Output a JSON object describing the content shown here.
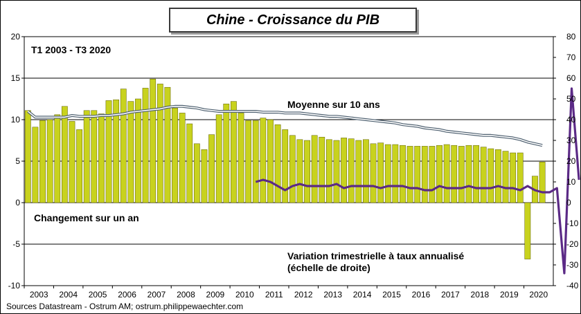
{
  "title": "Chine - Croissance du PIB",
  "source": "Sources Datastream - Ostrum AM; ostrum.philippewaechter.com",
  "chart_data": {
    "type": "bar",
    "period_label": "T1 2003 - T3 2020",
    "years": [
      "2003",
      "2004",
      "2005",
      "2006",
      "2007",
      "2008",
      "2009",
      "2010",
      "2011",
      "2012",
      "2013",
      "2014",
      "2015",
      "2016",
      "2017",
      "2018",
      "2019",
      "2020"
    ],
    "left_axis": {
      "ylim": [
        -10,
        20
      ],
      "ticks": [
        -10,
        -5,
        0,
        5,
        10,
        15,
        20
      ]
    },
    "right_axis": {
      "ylim": [
        -40,
        80
      ],
      "ticks": [
        -40,
        -30,
        -20,
        -10,
        0,
        10,
        20,
        30,
        40,
        50,
        60,
        70,
        80
      ]
    },
    "colors": {
      "bars": "#c8d21e",
      "bar_edge": "#5a5a00",
      "quarterly": "#5b2a86",
      "ten_year_outer": "#4e6070",
      "ten_year_inner": "#ffffff"
    },
    "series": [
      {
        "name": "Changement sur un an",
        "axis": "left",
        "kind": "bar",
        "start": "2003-Q1",
        "values": [
          11.1,
          9.1,
          9.9,
          10.0,
          10.6,
          11.6,
          9.8,
          8.8,
          11.1,
          11.1,
          10.7,
          12.3,
          12.4,
          13.7,
          12.2,
          12.5,
          13.8,
          14.9,
          14.3,
          13.9,
          11.4,
          10.8,
          9.5,
          7.1,
          6.4,
          8.2,
          10.6,
          11.9,
          12.2,
          10.8,
          9.9,
          9.9,
          10.2,
          10.0,
          9.4,
          8.8,
          8.1,
          7.6,
          7.5,
          8.1,
          7.9,
          7.6,
          7.5,
          7.8,
          7.7,
          7.5,
          7.6,
          7.1,
          7.2,
          7.0,
          7.0,
          6.9,
          6.8,
          6.8,
          6.8,
          6.8,
          6.9,
          7.0,
          6.9,
          6.8,
          6.9,
          6.9,
          6.7,
          6.5,
          6.4,
          6.2,
          6.0,
          6.0,
          -6.8,
          3.2,
          4.9
        ]
      },
      {
        "name": "Moyenne sur 10 ans",
        "axis": "left",
        "kind": "line",
        "start": "2003-Q1",
        "values": [
          11.0,
          10.3,
          10.3,
          10.3,
          10.3,
          10.3,
          10.5,
          10.4,
          10.4,
          10.4,
          10.5,
          10.5,
          10.6,
          10.7,
          10.9,
          11.0,
          11.1,
          11.2,
          11.3,
          11.5,
          11.6,
          11.6,
          11.5,
          11.4,
          11.2,
          11.1,
          11.0,
          11.0,
          11.0,
          11.0,
          11.0,
          11.0,
          10.9,
          10.9,
          10.9,
          10.8,
          10.8,
          10.8,
          10.7,
          10.6,
          10.5,
          10.4,
          10.4,
          10.3,
          10.2,
          10.1,
          10.0,
          9.9,
          9.8,
          9.7,
          9.6,
          9.4,
          9.3,
          9.2,
          9.0,
          8.9,
          8.8,
          8.6,
          8.5,
          8.4,
          8.3,
          8.2,
          8.1,
          8.1,
          8.0,
          7.9,
          7.8,
          7.6,
          7.3,
          7.1,
          6.9
        ]
      },
      {
        "name": "Variation trimestrielle à taux annualisé (échelle de droite)",
        "axis": "right",
        "kind": "line",
        "start": "2010-Q4",
        "values": [
          10,
          11,
          10,
          8,
          6,
          8,
          9,
          8,
          8,
          8,
          8,
          9,
          7,
          8,
          8,
          8,
          8,
          7,
          8,
          8,
          8,
          7,
          7,
          6,
          6,
          8,
          7,
          7,
          7,
          8,
          7,
          7,
          7,
          8,
          7,
          7,
          6,
          8,
          6,
          5,
          5,
          7,
          -34,
          55,
          11
        ]
      }
    ],
    "annotations": {
      "yoy": "Changement sur un an",
      "avg": "Moyenne sur 10 ans",
      "qoq_line1": "Variation trimestrielle  à taux annualisé",
      "qoq_line2": "(échelle de droite)"
    }
  }
}
